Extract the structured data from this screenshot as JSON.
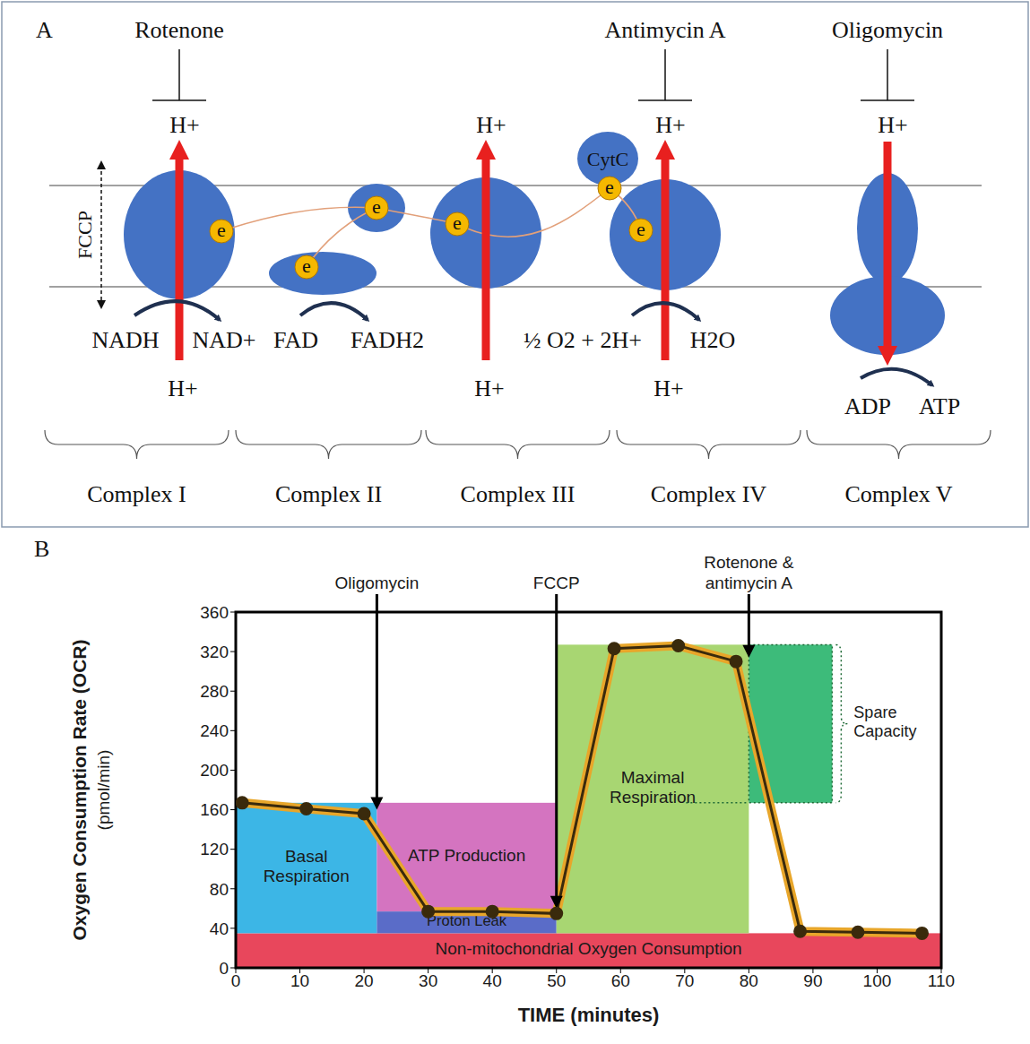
{
  "panel_a": {
    "letter": "A",
    "uncoupler": "FCCP",
    "electron": "e",
    "cytochrome": "CytC",
    "complexes": [
      {
        "name": "Complex I",
        "inhibitor": "Rotenone",
        "top": "H+",
        "bottom": "H+",
        "substrate": "NADH",
        "product": "NAD+"
      },
      {
        "name": "Complex II",
        "substrate": "FAD",
        "product": "FADH2"
      },
      {
        "name": "Complex III",
        "top": "H+",
        "bottom": "H+"
      },
      {
        "name": "Complex IV",
        "inhibitor": "Antimycin A",
        "top": "H+",
        "bottom": "H+",
        "substrate": "½ O2 + 2H+",
        "product": "H2O"
      },
      {
        "name": "Complex V",
        "inhibitor": "Oligomycin",
        "top": "H+",
        "substrate": "ADP",
        "product": "ATP"
      }
    ]
  },
  "chart_data": {
    "letter": "B",
    "type": "line",
    "xlabel": "TIME (minutes)",
    "ylabel": "Oxygen Consumption Rate (OCR)",
    "ylabel_unit": "(pmol/min)",
    "x": [
      1,
      11,
      20,
      30,
      40,
      50,
      59,
      69,
      78,
      88,
      97,
      107
    ],
    "values": [
      167,
      161,
      156,
      57,
      57,
      55,
      323,
      326,
      310,
      37,
      36,
      35
    ],
    "color": "#3a2a0c",
    "marker": "circle",
    "grid": false,
    "xlim": [
      0,
      110
    ],
    "xticks": [
      0,
      10,
      20,
      30,
      40,
      50,
      60,
      70,
      80,
      90,
      100,
      110
    ],
    "ylim": [
      0,
      360
    ],
    "yticks": [
      0,
      40,
      80,
      120,
      160,
      200,
      240,
      280,
      320,
      360
    ],
    "regions": [
      {
        "label": "Non-mitochondrial Oxygen Consumption",
        "x": [
          0,
          110
        ],
        "y": [
          0,
          35
        ],
        "color": "#e8475c"
      },
      {
        "label": "Basal Respiration",
        "x": [
          0,
          22
        ],
        "y": [
          35,
          167
        ],
        "color": "#3cb6e6"
      },
      {
        "label": "ATP Production",
        "x": [
          22,
          50
        ],
        "y": [
          57,
          167
        ],
        "color": "#d474c0"
      },
      {
        "label": "Proton Leak",
        "x": [
          22,
          50
        ],
        "y": [
          35,
          57
        ],
        "color": "#5a6cc8"
      },
      {
        "label": "Maximal Respiration",
        "x": [
          50,
          80
        ],
        "y": [
          35,
          327
        ],
        "color": "#a8d672"
      }
    ],
    "spare_capacity": {
      "label": "Spare Capacity",
      "x": [
        80,
        93
      ],
      "y": [
        167,
        327
      ],
      "color": "#3dbb7a"
    },
    "annotations": [
      {
        "text": "Oligomycin",
        "x": 22,
        "y": 160
      },
      {
        "text": "FCCP",
        "x": 50,
        "y": 60
      },
      {
        "text": "Rotenone & antimycin A",
        "x": 80,
        "y": 314
      }
    ]
  }
}
